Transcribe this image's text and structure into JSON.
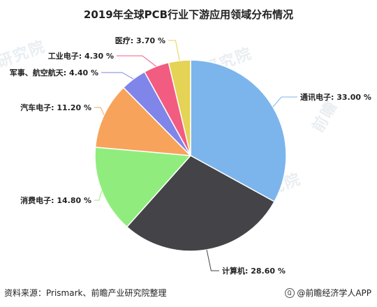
{
  "chart_data": {
    "type": "pie",
    "title": "2019年全球PCB行业下游应用领域分布情况",
    "slices": [
      {
        "label": "通讯电子",
        "value": 33.0,
        "display": "通讯电子: 33.00 %",
        "color": "#7cb5ec"
      },
      {
        "label": "计算机",
        "value": 28.6,
        "display": "计算机: 28.60 %",
        "color": "#434348"
      },
      {
        "label": "消费电子",
        "value": 14.8,
        "display": "消费电子: 14.80 %",
        "color": "#90ed7d"
      },
      {
        "label": "汽车电子",
        "value": 11.2,
        "display": "汽车电子: 11.20 %",
        "color": "#f7a35c"
      },
      {
        "label": "军事、航空航天",
        "value": 4.4,
        "display": "军事、航空航天: 4.40 %",
        "color": "#8085e9"
      },
      {
        "label": "工业电子",
        "value": 4.3,
        "display": "工业电子: 4.30 %",
        "color": "#f15c80"
      },
      {
        "label": "医疗",
        "value": 3.7,
        "display": "医疗: 3.70 %",
        "color": "#e4d354"
      }
    ],
    "legend": "none",
    "labels": "outside with leader lines"
  },
  "footer": {
    "source": "资料来源：Prismark、前瞻产业研究院整理",
    "credit": "@前瞻经济学人APP"
  },
  "watermark": {
    "text": "前瞻产业研究院"
  }
}
